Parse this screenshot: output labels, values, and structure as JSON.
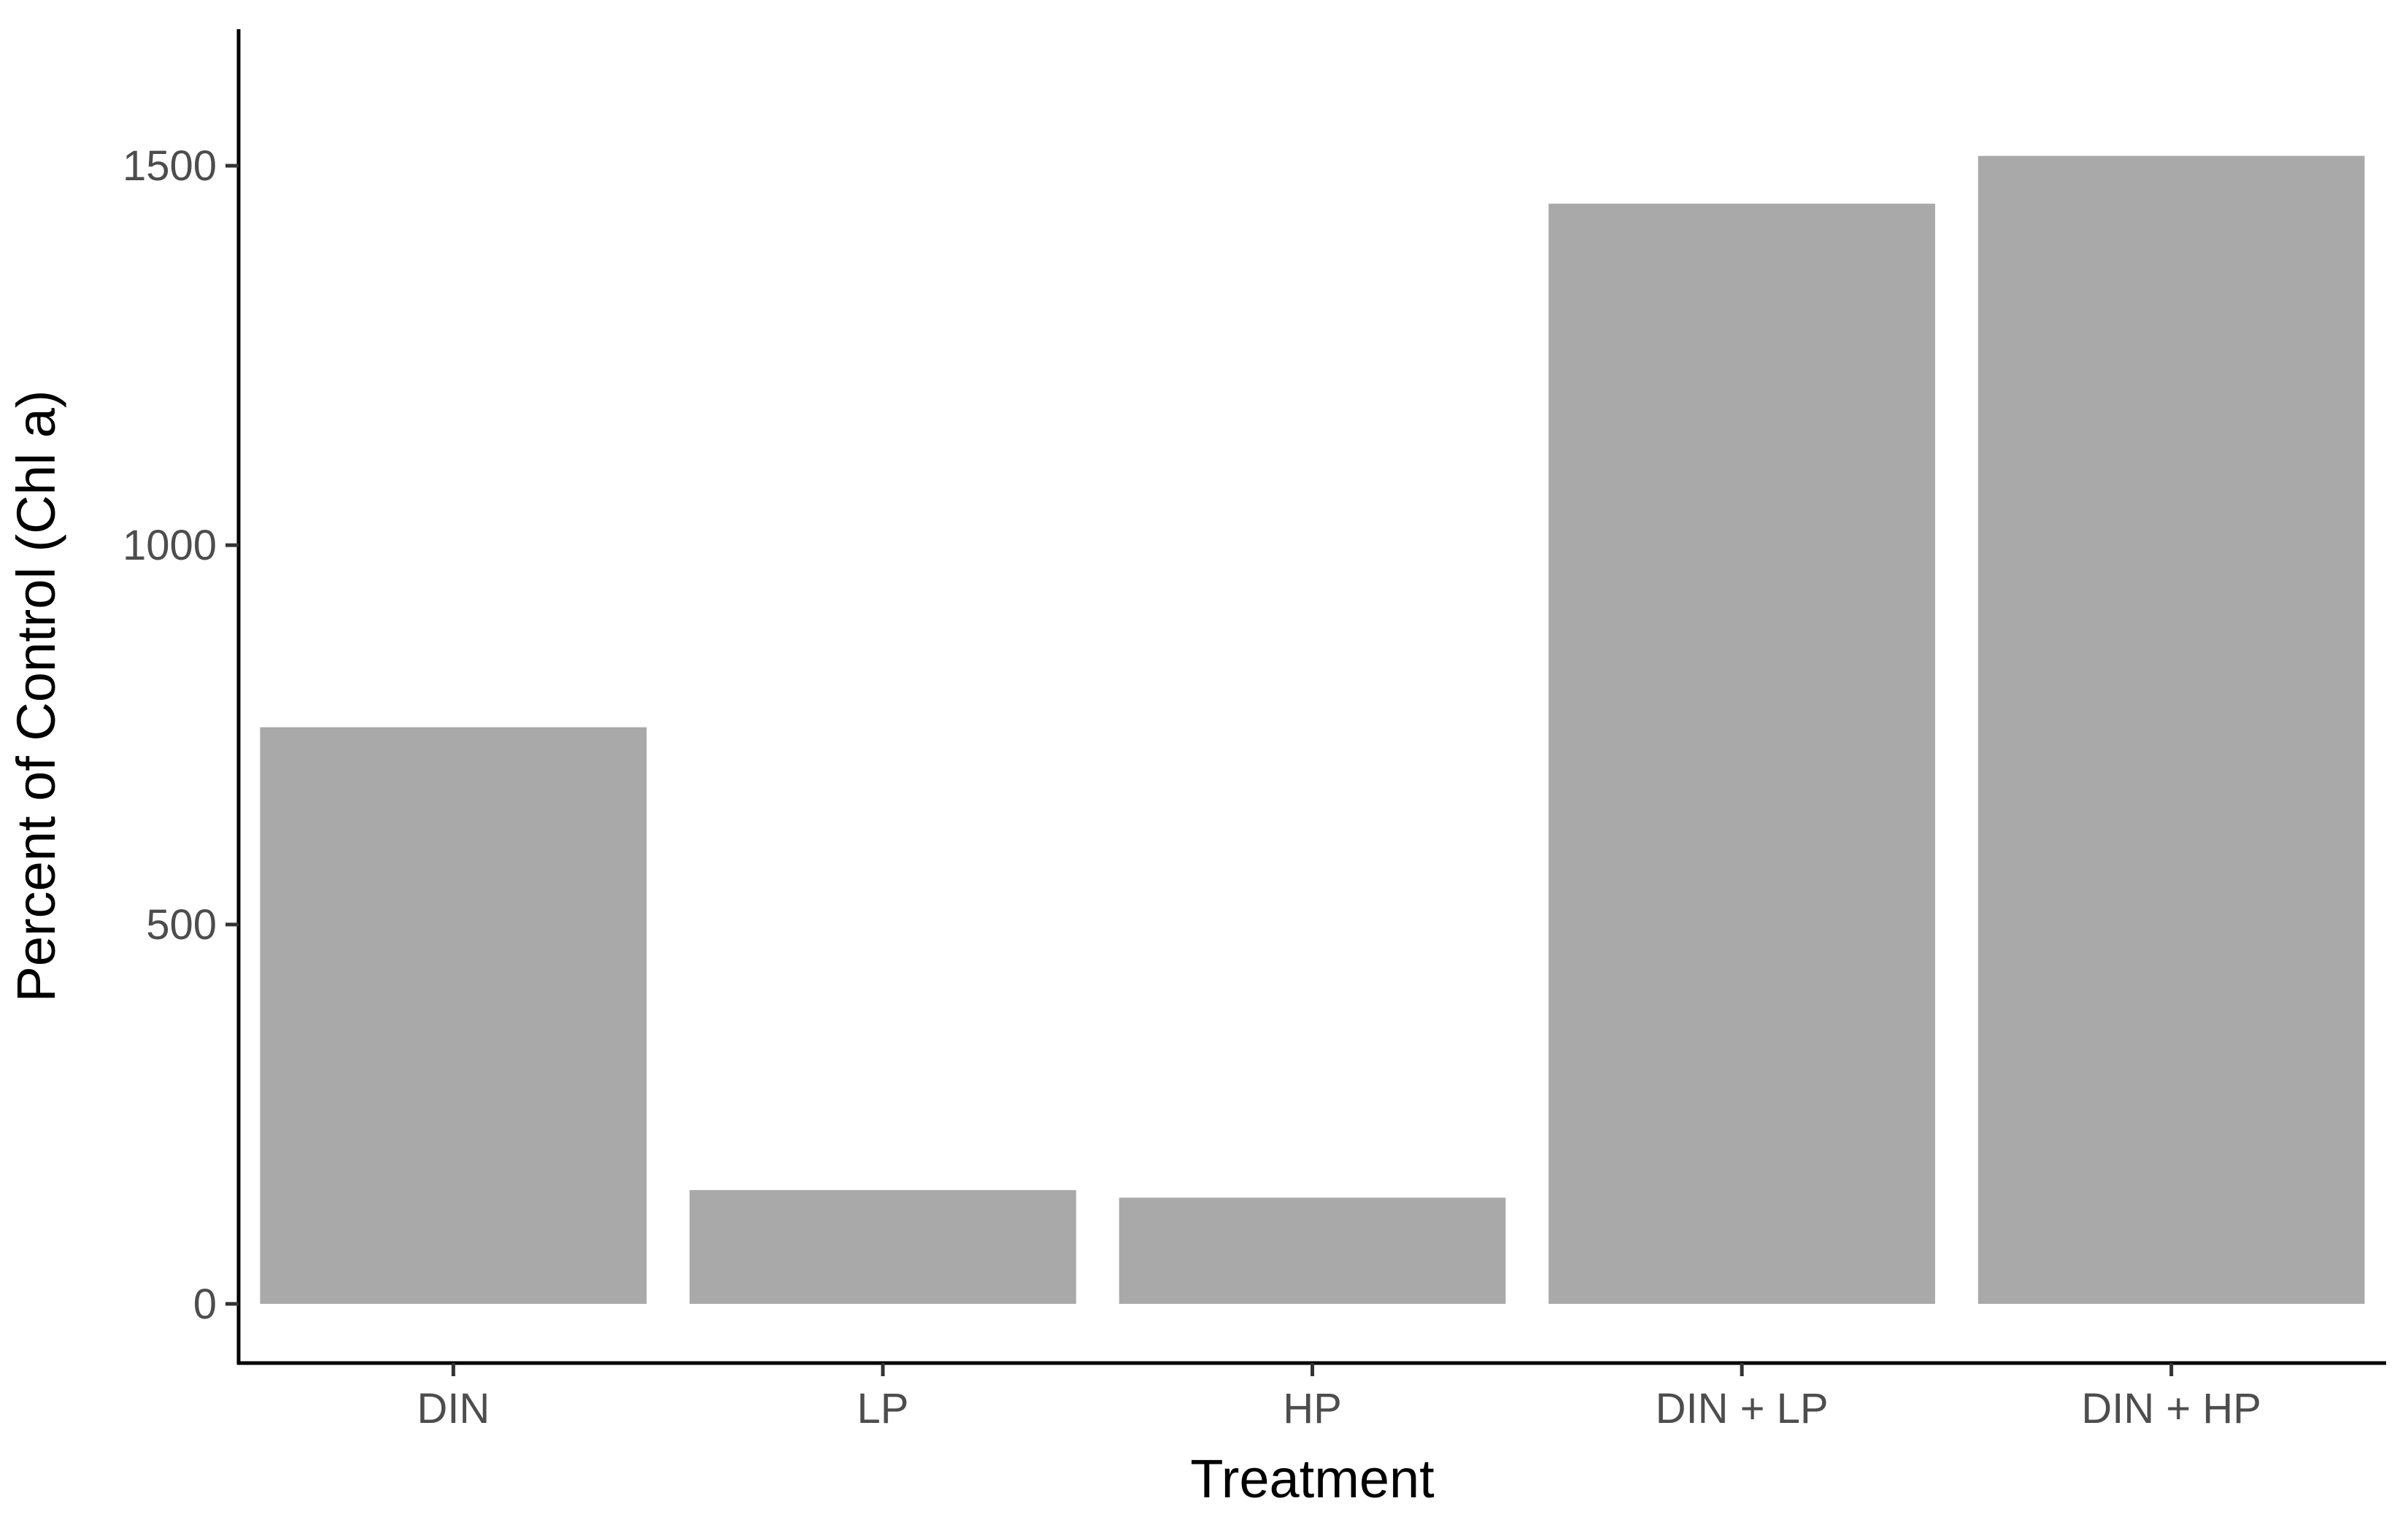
{
  "colors": {
    "bar": "#a9a9a9",
    "axis": "#000000",
    "tick_text": "#4d4d4d",
    "background": "#ffffff"
  },
  "chart_data": {
    "type": "bar",
    "categories": [
      "DIN",
      "LP",
      "HP",
      "DIN + LP",
      "DIN + HP"
    ],
    "values": [
      760,
      150,
      140,
      1450,
      1513
    ],
    "xlabel": "Treatment",
    "ylabel": "Percent of Control (Chl a)",
    "ylim": [
      -78,
      1680
    ],
    "yticks": [
      0,
      500,
      1000,
      1500
    ],
    "grid": false,
    "legend": "none"
  }
}
